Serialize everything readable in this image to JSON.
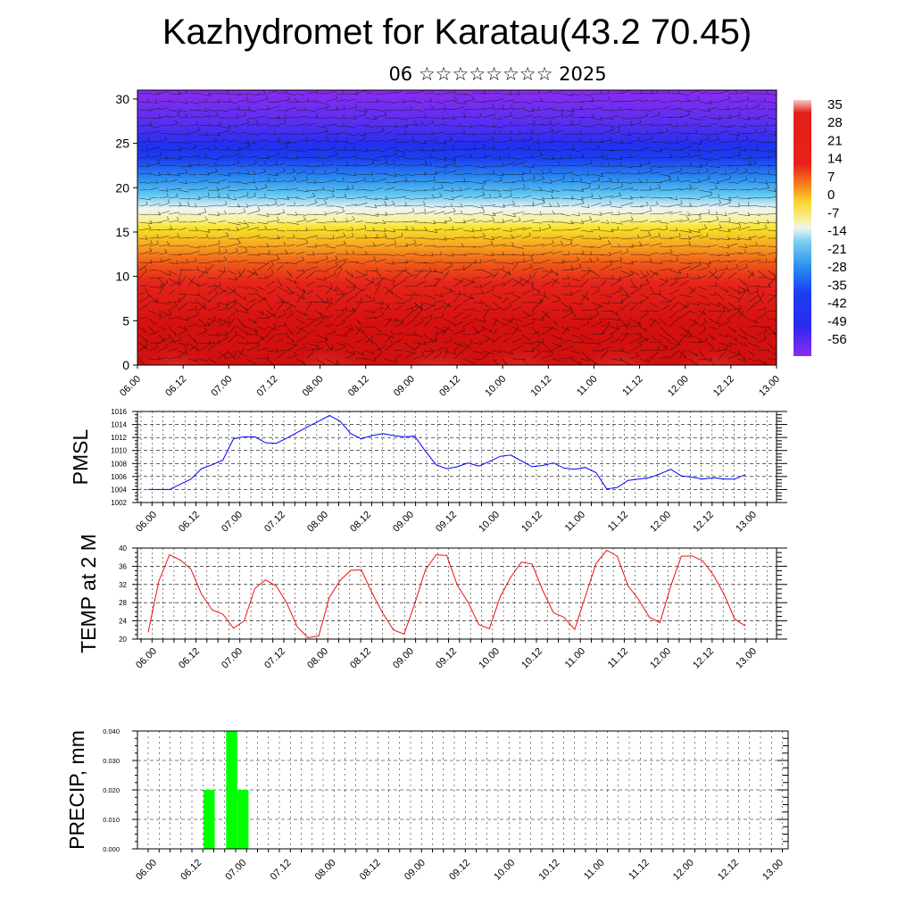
{
  "title": "Kazhydromet for Karatau(43.2 70.45)",
  "subtitle": "06 ☆☆☆☆☆☆☆☆ 2025",
  "chart_data": [
    {
      "type": "heatmap",
      "name": "cross-section",
      "xticks": [
        "06.00",
        "06.12",
        "07.00",
        "07.12",
        "08.00",
        "08.12",
        "09.00",
        "09.12",
        "10.00",
        "10.12",
        "11.00",
        "11.12",
        "12.00",
        "12.12",
        "13.00"
      ],
      "yticks": [
        "0",
        "5",
        "10",
        "15",
        "20",
        "25",
        "30"
      ],
      "ylim": [
        0,
        31
      ],
      "colorbar_labels": [
        "35",
        "28",
        "21",
        "14",
        "7",
        "0",
        "-7",
        "-14",
        "-21",
        "-28",
        "-35",
        "-42",
        "-49",
        "-56"
      ],
      "colorbar_range": [
        -60,
        38
      ],
      "colors": {
        "cold": "#7b2cf0",
        "blue": "#1f3cf0",
        "cyan": "#36b8f0",
        "pale": "#eef3f4",
        "yellow": "#f8ec30",
        "orange": "#f78a18",
        "red": "#e8201a",
        "darkred": "#d20c0c",
        "pink": "#f7b0b0"
      }
    },
    {
      "type": "line",
      "name": "pmsl",
      "ylabel": "PMSL",
      "ylim": [
        1002,
        1016
      ],
      "yticks": [
        "1002",
        "1004",
        "1006",
        "1008",
        "1010",
        "1012",
        "1014",
        "1016"
      ],
      "xticks": [
        "06.00",
        "06.12",
        "07.00",
        "07.12",
        "08.00",
        "08.12",
        "09.00",
        "09.12",
        "10.00",
        "10.12",
        "11.00",
        "11.12",
        "12.00",
        "12.12",
        "13.00"
      ],
      "line_color": "#0000ff",
      "values": [
        1004,
        1004,
        1004,
        1004.8,
        1005.6,
        1007.2,
        1007.8,
        1008.5,
        1011.8,
        1012.1,
        1012.1,
        1011.2,
        1011.1,
        1011.9,
        1012.8,
        1013.7,
        1014.5,
        1015.4,
        1014.5,
        1012.6,
        1011.8,
        1012.3,
        1012.6,
        1012.3,
        1012.1,
        1012.2,
        1009.9,
        1007.8,
        1007.2,
        1007.5,
        1008.1,
        1007.6,
        1008.3,
        1009.1,
        1009.3,
        1008.4,
        1007.5,
        1007.7,
        1008.1,
        1007.3,
        1007.1,
        1007.4,
        1006.6,
        1004.1,
        1004.3,
        1005.4,
        1005.6,
        1005.8,
        1006.4,
        1007.1,
        1006.1,
        1005.9,
        1005.6,
        1005.8,
        1005.6,
        1005.6,
        1006.3
      ]
    },
    {
      "type": "line",
      "name": "temp",
      "ylabel": "TEMP at 2 M",
      "ylim": [
        20,
        40
      ],
      "yticks": [
        "20",
        "24",
        "28",
        "32",
        "36",
        "40"
      ],
      "xticks": [
        "06.00",
        "06.12",
        "07.00",
        "07.12",
        "08.00",
        "08.12",
        "09.00",
        "09.12",
        "10.00",
        "10.12",
        "11.00",
        "11.12",
        "12.00",
        "12.12",
        "13.00"
      ],
      "line_color": "#ee1010",
      "values": [
        21.5,
        32.7,
        38.5,
        37.4,
        35.4,
        29.9,
        26.4,
        25.5,
        22.4,
        24,
        31.1,
        33,
        31.7,
        27.9,
        22.6,
        20.3,
        20.7,
        29.2,
        32.9,
        35.1,
        35.2,
        30.1,
        25.7,
        22,
        21.1,
        27.8,
        35.2,
        38.5,
        38.4,
        31.8,
        28.1,
        23.2,
        22.3,
        29.2,
        33.6,
        36.9,
        36.5,
        30.7,
        25.8,
        24.8,
        22.1,
        29.4,
        36.6,
        39.5,
        38.2,
        31.7,
        28.7,
        24.8,
        23.6,
        31.6,
        38.2,
        38.3,
        37.2,
        34.1,
        29.9,
        24.4,
        22.9
      ]
    },
    {
      "type": "bar",
      "name": "precip",
      "ylabel": "PRECIP, mm",
      "ylim": [
        0,
        0.04
      ],
      "yticks": [
        "0.000",
        "0.010",
        "0.020",
        "0.030",
        "0.040"
      ],
      "xticks": [
        "06.00",
        "06.12",
        "07.00",
        "07.12",
        "08.00",
        "08.12",
        "09.00",
        "09.12",
        "10.00",
        "10.12",
        "11.00",
        "11.12",
        "12.00",
        "12.12",
        "13.00"
      ],
      "bar_color": "#00ff00",
      "bars": [
        {
          "x": 5,
          "value": 0.02
        },
        {
          "x": 7,
          "value": 0.04
        },
        {
          "x": 8,
          "value": 0.02
        }
      ]
    }
  ]
}
